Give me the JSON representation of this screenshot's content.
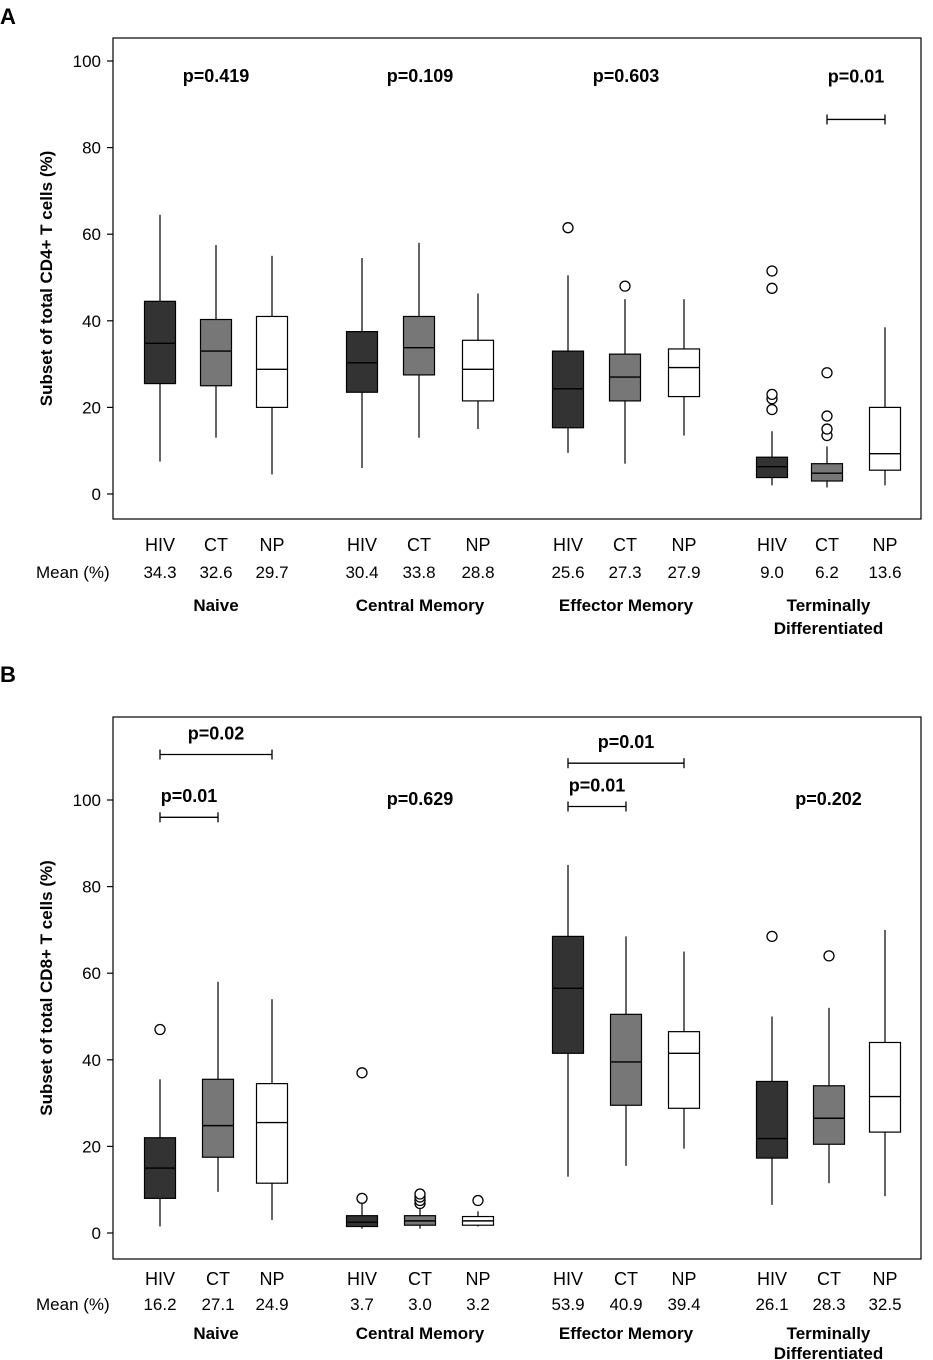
{
  "colors": {
    "HIV": "#333333",
    "CT": "#777777",
    "NP": "#ffffff"
  },
  "chart_data": [
    {
      "panel": "A",
      "type": "box",
      "ylabel": "Subset of total CD4+ T cells (%)",
      "ylim": [
        -5,
        105
      ],
      "yticks": [
        0,
        20,
        40,
        60,
        80,
        100
      ],
      "mean_label": "Mean (%)",
      "groups": [
        {
          "name": "Naive",
          "pvalue": "p=0.419",
          "boxes": [
            {
              "cat": "HIV",
              "mean": "34.3",
              "min": 7.5,
              "q1": 25.5,
              "median": 34.8,
              "q3": 44.5,
              "max": 64.5,
              "outliers": []
            },
            {
              "cat": "CT",
              "mean": "32.6",
              "min": 13,
              "q1": 25,
              "median": 33,
              "q3": 40.3,
              "max": 57.5,
              "outliers": []
            },
            {
              "cat": "NP",
              "mean": "29.7",
              "min": 4.5,
              "q1": 20,
              "median": 28.8,
              "q3": 41,
              "max": 55,
              "outliers": []
            }
          ],
          "brackets": []
        },
        {
          "name": "Central Memory",
          "pvalue": "p=0.109",
          "boxes": [
            {
              "cat": "HIV",
              "mean": "30.4",
              "min": 6,
              "q1": 23.5,
              "median": 30.3,
              "q3": 37.5,
              "max": 54.5,
              "outliers": []
            },
            {
              "cat": "CT",
              "mean": "33.8",
              "min": 13,
              "q1": 27.5,
              "median": 33.8,
              "q3": 41,
              "max": 58,
              "outliers": []
            },
            {
              "cat": "NP",
              "mean": "28.8",
              "min": 15,
              "q1": 21.5,
              "median": 28.8,
              "q3": 35.5,
              "max": 46.3,
              "outliers": []
            }
          ],
          "brackets": []
        },
        {
          "name": "Effector Memory",
          "pvalue": "p=0.603",
          "boxes": [
            {
              "cat": "HIV",
              "mean": "25.6",
              "min": 9.5,
              "q1": 15.3,
              "median": 24.3,
              "q3": 33,
              "max": 50.5,
              "outliers": [
                61.5
              ]
            },
            {
              "cat": "CT",
              "mean": "27.3",
              "min": 7,
              "q1": 21.5,
              "median": 27,
              "q3": 32.3,
              "max": 45,
              "outliers": [
                48
              ]
            },
            {
              "cat": "NP",
              "mean": "27.9",
              "min": 13.5,
              "q1": 22.5,
              "median": 29.2,
              "q3": 33.5,
              "max": 45,
              "outliers": []
            }
          ],
          "brackets": []
        },
        {
          "name": "Terminally Differentiated",
          "name_lines": [
            "Terminally",
            "Differentiated"
          ],
          "pvalue": "p=0.01",
          "boxes": [
            {
              "cat": "HIV",
              "mean": "9.0",
              "min": 2,
              "q1": 3.8,
              "median": 6.3,
              "q3": 8.5,
              "max": 14.5,
              "outliers": [
                19.5,
                22,
                23,
                47.5,
                51.5
              ]
            },
            {
              "cat": "CT",
              "mean": "6.2",
              "min": 1.5,
              "q1": 3,
              "median": 4.8,
              "q3": 7,
              "max": 11,
              "outliers": [
                13.5,
                15,
                18,
                28
              ]
            },
            {
              "cat": "NP",
              "mean": "13.6",
              "min": 2,
              "q1": 5.5,
              "median": 9.3,
              "q3": 20,
              "max": 38.5,
              "outliers": []
            }
          ],
          "brackets": [
            {
              "from": "CT",
              "to": "NP",
              "y": 86.5,
              "label": "p=0.01",
              "label_y": 95
            }
          ]
        }
      ]
    },
    {
      "panel": "B",
      "type": "box",
      "ylabel": "Subset of total CD8+ T cells (%)",
      "ylim": [
        -5,
        123
      ],
      "yticks": [
        0,
        20,
        40,
        60,
        80,
        100
      ],
      "mean_label": "Mean (%)",
      "groups": [
        {
          "name": "Naive",
          "pvalue": "",
          "boxes": [
            {
              "cat": "HIV",
              "mean": "16.2",
              "min": 1.5,
              "q1": 8,
              "median": 15,
              "q3": 22,
              "max": 35.5,
              "outliers": [
                47
              ]
            },
            {
              "cat": "CT",
              "mean": "27.1",
              "min": 9.5,
              "q1": 17.5,
              "median": 24.8,
              "q3": 35.5,
              "max": 58,
              "outliers": []
            },
            {
              "cat": "NP",
              "mean": "24.9",
              "min": 3,
              "q1": 11.5,
              "median": 25.5,
              "q3": 34.5,
              "max": 54,
              "outliers": []
            }
          ],
          "brackets": [
            {
              "from": "HIV",
              "to": "CT",
              "y": 96,
              "label": "p=0.01",
              "label_y": 99.5
            },
            {
              "from": "HIV",
              "to": "NP",
              "y": 110.5,
              "label": "p=0.02",
              "label_y": 114
            }
          ]
        },
        {
          "name": "Central Memory",
          "pvalue": "p=0.629",
          "boxes": [
            {
              "cat": "HIV",
              "mean": "3.7",
              "min": 1,
              "q1": 1.5,
              "median": 2.5,
              "q3": 4,
              "max": 7,
              "outliers": [
                8,
                37
              ]
            },
            {
              "cat": "CT",
              "mean": "3.0",
              "min": 1,
              "q1": 1.8,
              "median": 2.8,
              "q3": 4,
              "max": 6,
              "outliers": [
                6.8,
                7.5,
                8.3,
                9
              ]
            },
            {
              "cat": "NP",
              "mean": "3.2",
              "min": 1.5,
              "q1": 1.8,
              "median": 2.8,
              "q3": 3.8,
              "max": 5,
              "outliers": [
                7.5
              ]
            }
          ],
          "brackets": []
        },
        {
          "name": "Effector Memory",
          "pvalue": "",
          "boxes": [
            {
              "cat": "HIV",
              "mean": "53.9",
              "min": 13,
              "q1": 41.5,
              "median": 56.5,
              "q3": 68.5,
              "max": 85,
              "outliers": []
            },
            {
              "cat": "CT",
              "mean": "40.9",
              "min": 15.5,
              "q1": 29.5,
              "median": 39.5,
              "q3": 50.5,
              "max": 68.5,
              "outliers": []
            },
            {
              "cat": "NP",
              "mean": "39.4",
              "min": 19.5,
              "q1": 28.8,
              "median": 41.5,
              "q3": 46.5,
              "max": 65,
              "outliers": []
            }
          ],
          "brackets": [
            {
              "from": "HIV",
              "to": "CT",
              "y": 98.5,
              "label": "p=0.01",
              "label_y": 102
            },
            {
              "from": "HIV",
              "to": "NP",
              "y": 108.5,
              "label": "p=0.01",
              "label_y": 112
            }
          ]
        },
        {
          "name": "Terminally Differentiated",
          "name_lines": [
            "Terminally",
            "Differentiated"
          ],
          "pvalue": "p=0.202",
          "boxes": [
            {
              "cat": "HIV",
              "mean": "26.1",
              "min": 6.5,
              "q1": 17.3,
              "median": 21.8,
              "q3": 35,
              "max": 50,
              "outliers": [
                68.5
              ]
            },
            {
              "cat": "CT",
              "mean": "28.3",
              "min": 11.5,
              "q1": 20.5,
              "median": 26.5,
              "q3": 34,
              "max": 52,
              "outliers": [
                64
              ]
            },
            {
              "cat": "NP",
              "mean": "32.5",
              "min": 8.5,
              "q1": 23.3,
              "median": 31.5,
              "q3": 44,
              "max": 70,
              "outliers": []
            }
          ],
          "brackets": []
        }
      ]
    }
  ]
}
